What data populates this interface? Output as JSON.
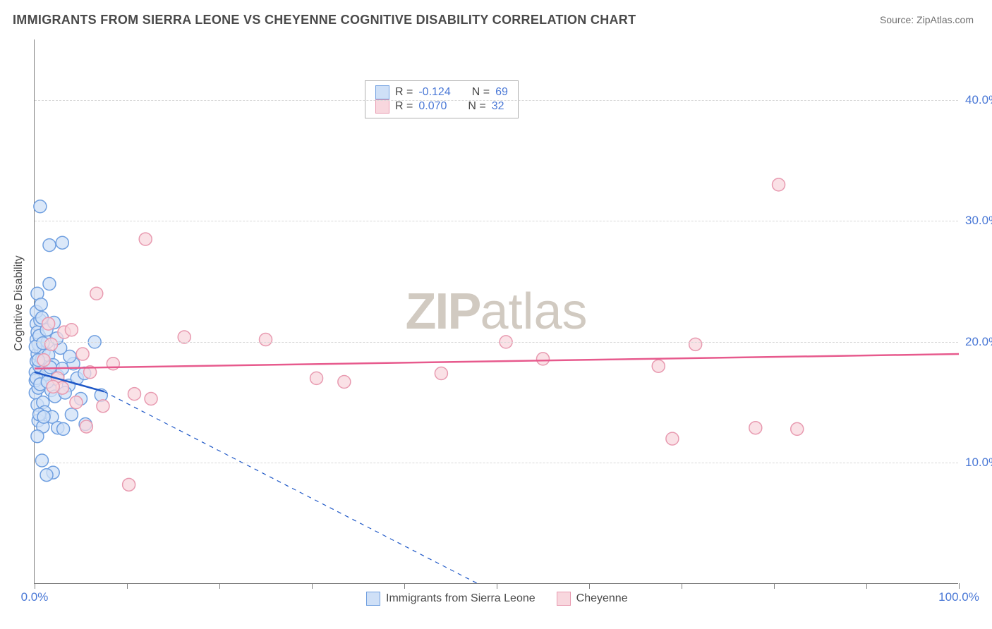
{
  "title": "IMMIGRANTS FROM SIERRA LEONE VS CHEYENNE COGNITIVE DISABILITY CORRELATION CHART",
  "source_label": "Source: ZipAtlas.com",
  "ylabel": "Cognitive Disability",
  "watermark": {
    "bold": "ZIP",
    "rest": "atlas"
  },
  "chart": {
    "type": "scatter-with-regression",
    "background_color": "#ffffff",
    "grid_color": "#d8d8d8",
    "axis_color": "#808080",
    "label_color": "#4a78d6",
    "title_color": "#4a4a4a",
    "title_fontsize": 18,
    "label_fontsize": 17,
    "ylabel_fontsize": 16,
    "x_range": [
      0,
      100
    ],
    "y_range": [
      0,
      45
    ],
    "x_ticks": [
      0,
      10,
      20,
      30,
      40,
      50,
      60,
      70,
      80,
      90,
      100
    ],
    "x_tick_labels": {
      "0": "0.0%",
      "100": "100.0%"
    },
    "y_gridlines": [
      10,
      20,
      30,
      40
    ],
    "y_tick_labels": {
      "10": "10.0%",
      "20": "20.0%",
      "30": "30.0%",
      "40": "40.0%"
    },
    "marker_radius": 9,
    "marker_stroke_width": 1.5,
    "line_width": 2.5,
    "series": [
      {
        "key": "sierra_leone",
        "label": "Immigrants from Sierra Leone",
        "fill": "#cfe0f7",
        "stroke": "#6f9fe0",
        "line_color": "#1f58c7",
        "dashed_extension": true,
        "R": "-0.124",
        "N": "69",
        "regression": {
          "x1": 0,
          "y1": 17.5,
          "x2": 7.5,
          "y2": 15.9
        },
        "ext_line": {
          "x1": 7.5,
          "y1": 15.9,
          "x2": 48,
          "y2": 0
        },
        "points": [
          [
            0.1,
            17.5
          ],
          [
            0.2,
            18.4
          ],
          [
            0.3,
            19.0
          ],
          [
            0.1,
            15.8
          ],
          [
            0.4,
            16.2
          ],
          [
            0.2,
            20.2
          ],
          [
            0.5,
            18.0
          ],
          [
            0.3,
            14.8
          ],
          [
            0.6,
            19.5
          ],
          [
            0.2,
            21.5
          ],
          [
            0.7,
            17.0
          ],
          [
            0.1,
            16.8
          ],
          [
            0.4,
            19.8
          ],
          [
            0.8,
            18.6
          ],
          [
            0.9,
            15.0
          ],
          [
            0.3,
            20.8
          ],
          [
            1.2,
            17.3
          ],
          [
            1.0,
            19.2
          ],
          [
            1.5,
            18.9
          ],
          [
            1.8,
            16.0
          ],
          [
            0.5,
            20.5
          ],
          [
            0.6,
            21.8
          ],
          [
            0.2,
            22.5
          ],
          [
            0.1,
            19.6
          ],
          [
            1.1,
            14.2
          ],
          [
            2.0,
            18.1
          ],
          [
            2.5,
            17.2
          ],
          [
            1.4,
            20.0
          ],
          [
            0.4,
            13.5
          ],
          [
            0.8,
            22.0
          ],
          [
            3.0,
            17.8
          ],
          [
            2.2,
            15.5
          ],
          [
            1.6,
            24.8
          ],
          [
            0.3,
            24.0
          ],
          [
            4.2,
            18.2
          ],
          [
            3.7,
            16.4
          ],
          [
            5.0,
            15.3
          ],
          [
            0.5,
            14.0
          ],
          [
            0.9,
            13.0
          ],
          [
            1.3,
            21.0
          ],
          [
            0.7,
            23.1
          ],
          [
            2.8,
            19.5
          ],
          [
            4.6,
            17.0
          ],
          [
            1.9,
            13.8
          ],
          [
            0.2,
            17.0
          ],
          [
            0.6,
            16.5
          ],
          [
            1.7,
            17.9
          ],
          [
            2.4,
            20.3
          ],
          [
            3.3,
            15.8
          ],
          [
            0.4,
            18.5
          ],
          [
            1.0,
            13.8
          ],
          [
            2.5,
            12.9
          ],
          [
            3.1,
            12.8
          ],
          [
            0.8,
            10.2
          ],
          [
            2.0,
            9.2
          ],
          [
            1.3,
            9.0
          ],
          [
            0.6,
            31.2
          ],
          [
            3.0,
            28.2
          ],
          [
            1.6,
            28.0
          ],
          [
            5.5,
            13.2
          ],
          [
            6.5,
            20.0
          ],
          [
            0.3,
            12.2
          ],
          [
            4.0,
            14.0
          ],
          [
            7.2,
            15.6
          ],
          [
            3.8,
            18.8
          ],
          [
            2.1,
            21.6
          ],
          [
            1.4,
            16.7
          ],
          [
            0.9,
            19.9
          ],
          [
            5.4,
            17.4
          ]
        ]
      },
      {
        "key": "cheyenne",
        "label": "Cheyenne",
        "fill": "#f8d7de",
        "stroke": "#e89ab0",
        "line_color": "#e75a8d",
        "dashed_extension": false,
        "R": "0.070",
        "N": "32",
        "regression": {
          "x1": 0,
          "y1": 17.8,
          "x2": 100,
          "y2": 19.0
        },
        "points": [
          [
            1.0,
            18.5
          ],
          [
            1.8,
            19.8
          ],
          [
            2.5,
            17.0
          ],
          [
            3.0,
            16.2
          ],
          [
            4.5,
            15.0
          ],
          [
            5.2,
            19.0
          ],
          [
            6.0,
            17.5
          ],
          [
            1.5,
            21.5
          ],
          [
            6.7,
            24.0
          ],
          [
            3.2,
            20.8
          ],
          [
            7.4,
            14.7
          ],
          [
            8.5,
            18.2
          ],
          [
            5.6,
            13.0
          ],
          [
            2.0,
            16.3
          ],
          [
            4.0,
            21.0
          ],
          [
            10.2,
            8.2
          ],
          [
            10.8,
            15.7
          ],
          [
            12.6,
            15.3
          ],
          [
            12.0,
            28.5
          ],
          [
            16.2,
            20.4
          ],
          [
            25.0,
            20.2
          ],
          [
            30.5,
            17.0
          ],
          [
            33.5,
            16.7
          ],
          [
            44.0,
            17.4
          ],
          [
            51.0,
            20.0
          ],
          [
            67.5,
            18.0
          ],
          [
            69.0,
            12.0
          ],
          [
            71.5,
            19.8
          ],
          [
            78.0,
            12.9
          ],
          [
            80.5,
            33.0
          ],
          [
            82.5,
            12.8
          ],
          [
            55.0,
            18.6
          ]
        ]
      }
    ]
  },
  "legend_top_rows": [
    {
      "series": "sierra_leone",
      "r_label": "R =",
      "n_label": "N ="
    },
    {
      "series": "cheyenne",
      "r_label": "R =",
      "n_label": "N ="
    }
  ]
}
